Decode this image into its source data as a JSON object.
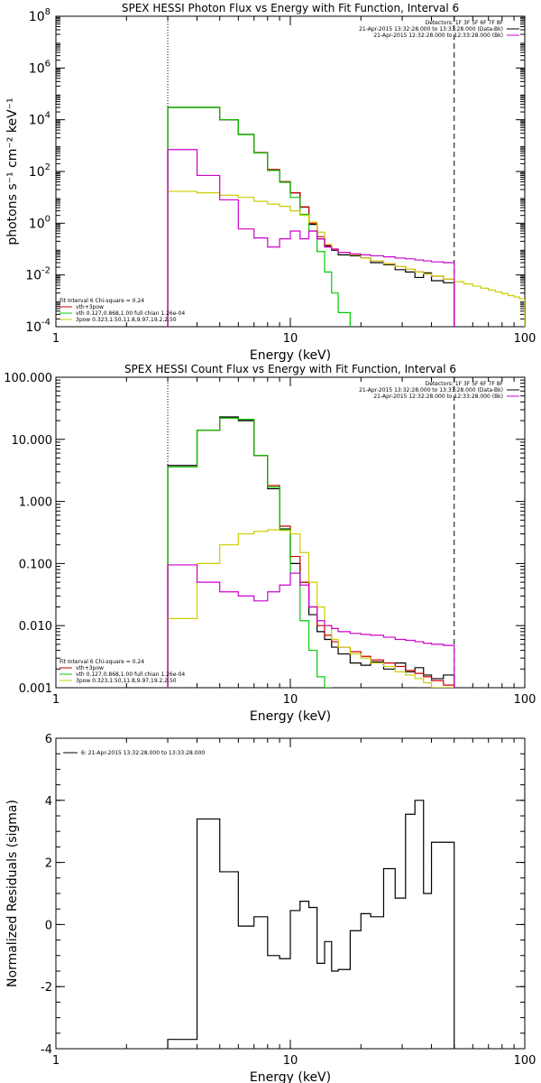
{
  "chart_data": [
    {
      "type": "line",
      "title": "SPEX HESSI Photon Flux vs Energy with Fit Function, Interval 6",
      "xlabel": "Energy (keV)",
      "ylabel": "photons s⁻¹ cm⁻² keV⁻¹",
      "xscale": "log",
      "yscale": "log",
      "xlim": [
        1,
        100
      ],
      "ylim": [
        0.0001,
        100000000
      ],
      "xticks": [
        1,
        10,
        100
      ],
      "xtick_labels": [
        "1",
        "10",
        "100"
      ],
      "yticks": [
        0.0001,
        0.01,
        1,
        100,
        10000,
        1000000,
        100000000
      ],
      "ytick_labels": [
        {
          "base": "10",
          "exp": "-4"
        },
        {
          "base": "10",
          "exp": "-2"
        },
        {
          "base": "10",
          "exp": "0"
        },
        {
          "base": "10",
          "exp": "2"
        },
        {
          "base": "10",
          "exp": "4"
        },
        {
          "base": "10",
          "exp": "6"
        },
        {
          "base": "10",
          "exp": "8"
        }
      ],
      "vlines": [
        {
          "x": 3,
          "style": "dotted"
        },
        {
          "x": 50,
          "style": "dashed"
        }
      ],
      "legend_topright": {
        "lines": [
          {
            "text": "Detectors: 1F 3F 5F 6F 7F 8F",
            "color": "#000000"
          },
          {
            "text": "21-Apr-2015 13:32:28.000 to 13:33:28.000 (Data-Bk)",
            "color": "#000000"
          },
          {
            "text": "21-Apr-2015 12:32:28.000 to 12:33:28.000 (Bk)",
            "color": "#cc00cc"
          }
        ]
      },
      "legend_bottomleft": {
        "lines": [
          {
            "text": "Fit Interval  6    Chi-square = 0.24",
            "color": "#000000"
          },
          {
            "text": "vth+3pow",
            "color": "#cc0000"
          },
          {
            "text": "vth 0.127,0.868,1.00  full chian 1.26e-04",
            "color": "#00cc00"
          },
          {
            "text": "3pow 0.323,1.50,11.8,9.97,19.2,2.50",
            "color": "#cccc00"
          }
        ]
      },
      "series": [
        {
          "name": "Data-Bk",
          "color": "#000000",
          "edges": [
            3,
            4,
            5,
            6,
            7,
            8,
            9,
            10,
            11,
            12,
            13,
            14,
            15,
            16,
            18,
            20,
            22,
            25,
            28,
            31,
            34,
            37,
            40,
            45,
            50
          ],
          "values": [
            30000,
            30000,
            10000,
            2700,
            530,
            110,
            40,
            15,
            4.2,
            0.9,
            0.25,
            0.13,
            0.09,
            0.06,
            0.055,
            0.045,
            0.03,
            0.025,
            0.016,
            0.013,
            0.008,
            0.012,
            0.006,
            0.005
          ]
        },
        {
          "name": "vth+3pow",
          "color": "#cc0000",
          "edges": [
            3,
            4,
            5,
            6,
            7,
            8,
            9,
            10,
            11,
            12,
            13,
            14,
            15,
            16,
            18,
            20,
            22,
            25,
            28,
            31,
            34,
            37,
            40,
            45,
            50
          ],
          "values": [
            30000,
            30000,
            10000,
            2700,
            540,
            120,
            40,
            15,
            4.3,
            1.0,
            0.3,
            0.14,
            0.1,
            0.075,
            0.06,
            0.045,
            0.035,
            0.027,
            0.021,
            0.017,
            0.013,
            0.011,
            0.009,
            0.007
          ]
        },
        {
          "name": "vth",
          "color": "#00cc00",
          "edges": [
            3,
            4,
            5,
            6,
            7,
            8,
            9,
            10,
            11,
            12,
            13,
            14,
            15,
            16,
            18
          ],
          "values": [
            30000,
            30000,
            10000,
            2700,
            520,
            110,
            38,
            10,
            2.2,
            0.5,
            0.08,
            0.013,
            0.002,
            0.00035
          ]
        },
        {
          "name": "3pow",
          "color": "#cccc00",
          "edges": [
            3,
            4,
            5,
            6,
            7,
            8,
            9,
            10,
            11,
            12,
            13,
            14,
            15,
            16,
            18,
            20,
            22,
            25,
            28,
            31,
            34,
            37,
            40,
            45,
            50,
            55,
            60,
            65,
            70,
            75,
            80,
            85,
            90,
            95,
            100
          ],
          "values": [
            17,
            15,
            12,
            10,
            7,
            5.5,
            4.5,
            3,
            2,
            1.1,
            0.45,
            0.15,
            0.1,
            0.075,
            0.06,
            0.045,
            0.035,
            0.027,
            0.021,
            0.017,
            0.013,
            0.011,
            0.009,
            0.007,
            0.0055,
            0.0045,
            0.0037,
            0.0031,
            0.0026,
            0.0022,
            0.0019,
            0.0016,
            0.0014,
            0.0012
          ]
        },
        {
          "name": "Bk",
          "color": "#cc00cc",
          "edges": [
            3,
            4,
            5,
            6,
            7,
            8,
            9,
            10,
            11,
            12,
            13,
            14,
            15,
            16,
            18,
            20,
            22,
            25,
            28,
            31,
            34,
            37,
            40,
            45,
            50
          ],
          "values": [
            700,
            70,
            8,
            0.6,
            0.27,
            0.12,
            0.25,
            0.5,
            0.25,
            0.5,
            0.25,
            0.12,
            0.1,
            0.075,
            0.065,
            0.06,
            0.055,
            0.05,
            0.045,
            0.042,
            0.038,
            0.035,
            0.032,
            0.03
          ]
        }
      ]
    },
    {
      "type": "line",
      "title": "SPEX HESSI Count Flux vs Energy with Fit Function, Interval 6",
      "xlabel": "Energy (keV)",
      "ylabel": "",
      "xscale": "log",
      "yscale": "log",
      "xlim": [
        1,
        100
      ],
      "ylim": [
        0.001,
        100
      ],
      "xticks": [
        1,
        10,
        100
      ],
      "xtick_labels": [
        "1",
        "10",
        "100"
      ],
      "yticks": [
        0.001,
        0.01,
        0.1,
        1,
        10,
        100
      ],
      "ytick_labels": [
        "0.001",
        "0.010",
        "0.100",
        "1.000",
        "10.000",
        "100.000"
      ],
      "vlines": [
        {
          "x": 3,
          "style": "dotted"
        },
        {
          "x": 50,
          "style": "dashed"
        }
      ],
      "legend_topright": {
        "lines": [
          {
            "text": "Detectors: 1F 3F 5F 6F 7F 8F",
            "color": "#000000"
          },
          {
            "text": "21-Apr-2015 13:32:28.000 to 13:33:28.000 (Data-Bk)",
            "color": "#000000"
          },
          {
            "text": "21-Apr-2015 12:32:28.000 to 12:33:28.000 (Bk)",
            "color": "#cc00cc"
          }
        ]
      },
      "legend_bottomleft": {
        "lines": [
          {
            "text": "Fit Interval  6    Chi-square = 0.24",
            "color": "#000000"
          },
          {
            "text": "vth+3pow",
            "color": "#cc0000"
          },
          {
            "text": "vth 0.127,0.868,1.00  full chian 1.26e-04",
            "color": "#00cc00"
          },
          {
            "text": "3pow 0.323,1.50,11.8,9.97,19.2,2.50",
            "color": "#cccc00"
          }
        ]
      },
      "series": [
        {
          "name": "Data-Bk",
          "color": "#000000",
          "edges": [
            3,
            4,
            5,
            6,
            7,
            8,
            9,
            10,
            11,
            12,
            13,
            14,
            15,
            16,
            18,
            20,
            22,
            25,
            28,
            31,
            34,
            37,
            40,
            45,
            50
          ],
          "values": [
            3.8,
            14,
            23,
            20,
            5.5,
            1.6,
            0.36,
            0.1,
            0.05,
            0.015,
            0.008,
            0.006,
            0.0045,
            0.0035,
            0.0025,
            0.0023,
            0.0026,
            0.002,
            0.0025,
            0.0018,
            0.0021,
            0.0016,
            0.0014,
            0.0016
          ]
        },
        {
          "name": "vth+3pow",
          "color": "#cc0000",
          "edges": [
            3,
            4,
            5,
            6,
            7,
            8,
            9,
            10,
            11,
            12,
            13,
            14,
            15,
            16,
            18,
            20,
            22,
            25,
            28,
            31,
            34,
            37,
            40,
            45,
            50
          ],
          "values": [
            3.6,
            14,
            22,
            21,
            5.5,
            1.8,
            0.4,
            0.13,
            0.05,
            0.02,
            0.01,
            0.007,
            0.0055,
            0.0045,
            0.0038,
            0.0032,
            0.0028,
            0.0025,
            0.0022,
            0.0019,
            0.0017,
            0.0015,
            0.0013,
            0.0011
          ]
        },
        {
          "name": "vth",
          "color": "#00cc00",
          "edges": [
            3,
            4,
            5,
            6,
            7,
            8,
            9,
            10,
            11,
            12,
            13,
            14,
            15
          ],
          "values": [
            3.6,
            14,
            22,
            21,
            5.5,
            1.7,
            0.35,
            0.07,
            0.012,
            0.004,
            0.0015,
            0.0008
          ]
        },
        {
          "name": "3pow",
          "color": "#cccc00",
          "edges": [
            3,
            4,
            5,
            6,
            7,
            8,
            9,
            10,
            11,
            12,
            13,
            14,
            15,
            16,
            18,
            20,
            22,
            25,
            28,
            31,
            34,
            37,
            40,
            45,
            50
          ],
          "values": [
            0.013,
            0.1,
            0.2,
            0.3,
            0.33,
            0.35,
            0.34,
            0.3,
            0.15,
            0.05,
            0.02,
            0.01,
            0.006,
            0.0045,
            0.0035,
            0.003,
            0.0025,
            0.0022,
            0.0018,
            0.0016,
            0.0014,
            0.0012,
            0.001,
            0.0009
          ]
        },
        {
          "name": "Bk",
          "color": "#cc00cc",
          "edges": [
            3,
            4,
            5,
            6,
            7,
            8,
            9,
            10,
            11,
            12,
            13,
            14,
            15,
            16,
            18,
            20,
            22,
            25,
            28,
            31,
            34,
            37,
            40,
            45,
            50
          ],
          "values": [
            0.095,
            0.05,
            0.035,
            0.03,
            0.025,
            0.035,
            0.045,
            0.07,
            0.045,
            0.02,
            0.012,
            0.01,
            0.009,
            0.008,
            0.0075,
            0.0072,
            0.007,
            0.0065,
            0.006,
            0.0058,
            0.0055,
            0.0052,
            0.005,
            0.0048
          ]
        }
      ]
    },
    {
      "type": "line",
      "title": "",
      "xlabel": "Energy (keV)",
      "ylabel": "Normalized Residuals (sigma)",
      "xscale": "log",
      "yscale": "linear",
      "xlim": [
        1,
        100
      ],
      "ylim": [
        -4,
        6
      ],
      "xticks": [
        1,
        10,
        100
      ],
      "xtick_labels": [
        "1",
        "10",
        "100"
      ],
      "yticks": [
        -4,
        -2,
        0,
        2,
        4,
        6
      ],
      "ytick_labels": [
        "-4",
        "-2",
        "0",
        "2",
        "4",
        "6"
      ],
      "legend_topleft": {
        "lines": [
          {
            "text": "6: 21-Apr-2015 13:32:28.000 to 13:33:28.000",
            "color": "#000000"
          }
        ]
      },
      "series": [
        {
          "name": "6: 21-Apr-2015 13:32:28.000 to 13:33:28.000",
          "color": "#000000",
          "edges": [
            3,
            4,
            5,
            6,
            7,
            8,
            9,
            10,
            11,
            12,
            13,
            14,
            15,
            16,
            18,
            20,
            22,
            25,
            28,
            31,
            34,
            37,
            40,
            45,
            50
          ],
          "values": [
            -3.7,
            3.4,
            1.7,
            -0.05,
            0.25,
            -1.0,
            -1.1,
            0.45,
            0.75,
            0.55,
            -1.25,
            -0.55,
            -1.5,
            -1.45,
            -0.2,
            0.35,
            0.25,
            1.8,
            0.85,
            3.55,
            4.0,
            1.0,
            2.65,
            2.65
          ]
        }
      ]
    }
  ]
}
